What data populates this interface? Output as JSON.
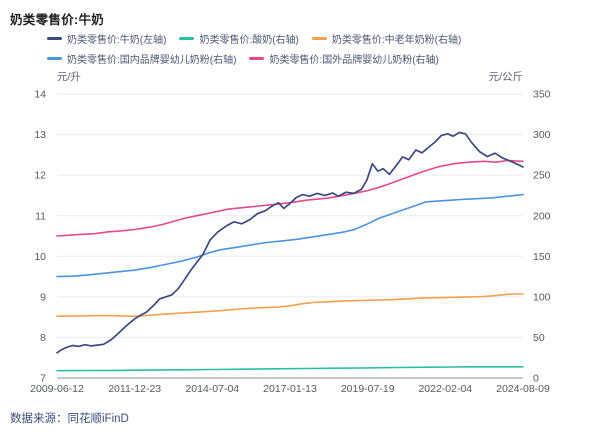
{
  "page": {
    "title": "奶类零售价:牛奶"
  },
  "footer": {
    "source": "数据来源：同花顺iFinD"
  },
  "chart_data": {
    "type": "line",
    "title": "奶类零售价:牛奶",
    "legend_position": "top",
    "grid": true,
    "x_axis": {
      "tick_labels": [
        "2009-06-12",
        "2011-12-23",
        "2014-07-04",
        "2017-01-13",
        "2019-07-19",
        "2022-02-04",
        "2024-08-09"
      ],
      "x_unit": "tick_index_0_to_6"
    },
    "left_axis": {
      "unit": "元/升",
      "min": 7,
      "max": 14,
      "ticks": [
        14,
        13,
        12,
        11,
        10,
        9,
        8,
        7
      ]
    },
    "right_axis": {
      "unit": "元/公斤",
      "min": 0,
      "max": 350,
      "ticks": [
        350,
        300,
        250,
        200,
        150,
        100,
        50,
        0
      ]
    },
    "series": [
      {
        "name": "奶类零售价:牛奶(左轴)",
        "axis": "left",
        "color": "#3b4a82",
        "points": [
          [
            0,
            7.62
          ],
          [
            0.06,
            7.7
          ],
          [
            0.13,
            7.76
          ],
          [
            0.2,
            7.8
          ],
          [
            0.28,
            7.78
          ],
          [
            0.36,
            7.82
          ],
          [
            0.44,
            7.79
          ],
          [
            0.52,
            7.81
          ],
          [
            0.6,
            7.83
          ],
          [
            0.7,
            7.95
          ],
          [
            0.8,
            8.12
          ],
          [
            0.9,
            8.3
          ],
          [
            1.0,
            8.46
          ],
          [
            1.07,
            8.54
          ],
          [
            1.15,
            8.62
          ],
          [
            1.25,
            8.8
          ],
          [
            1.32,
            8.95
          ],
          [
            1.4,
            9.0
          ],
          [
            1.48,
            9.05
          ],
          [
            1.56,
            9.2
          ],
          [
            1.64,
            9.42
          ],
          [
            1.72,
            9.65
          ],
          [
            1.8,
            9.85
          ],
          [
            1.88,
            10.05
          ],
          [
            1.97,
            10.4
          ],
          [
            2.07,
            10.6
          ],
          [
            2.18,
            10.75
          ],
          [
            2.28,
            10.85
          ],
          [
            2.38,
            10.8
          ],
          [
            2.48,
            10.9
          ],
          [
            2.58,
            11.05
          ],
          [
            2.68,
            11.12
          ],
          [
            2.78,
            11.25
          ],
          [
            2.85,
            11.32
          ],
          [
            2.92,
            11.18
          ],
          [
            3.0,
            11.3
          ],
          [
            3.08,
            11.45
          ],
          [
            3.16,
            11.52
          ],
          [
            3.25,
            11.48
          ],
          [
            3.35,
            11.55
          ],
          [
            3.45,
            11.5
          ],
          [
            3.55,
            11.56
          ],
          [
            3.62,
            11.48
          ],
          [
            3.72,
            11.58
          ],
          [
            3.82,
            11.55
          ],
          [
            3.92,
            11.65
          ],
          [
            3.99,
            11.88
          ],
          [
            4.06,
            12.28
          ],
          [
            4.13,
            12.1
          ],
          [
            4.2,
            12.16
          ],
          [
            4.28,
            12.02
          ],
          [
            4.37,
            12.24
          ],
          [
            4.45,
            12.45
          ],
          [
            4.53,
            12.38
          ],
          [
            4.62,
            12.62
          ],
          [
            4.7,
            12.55
          ],
          [
            4.78,
            12.68
          ],
          [
            4.87,
            12.82
          ],
          [
            4.95,
            12.98
          ],
          [
            5.03,
            13.02
          ],
          [
            5.1,
            12.96
          ],
          [
            5.18,
            13.05
          ],
          [
            5.26,
            13.02
          ],
          [
            5.34,
            12.8
          ],
          [
            5.44,
            12.58
          ],
          [
            5.54,
            12.46
          ],
          [
            5.64,
            12.54
          ],
          [
            5.74,
            12.42
          ],
          [
            5.87,
            12.32
          ],
          [
            6.0,
            12.2
          ]
        ]
      },
      {
        "name": "奶类零售价:酸奶(右轴)",
        "axis": "right",
        "color": "#2bbfa2",
        "points": [
          [
            0,
            9
          ],
          [
            0.4,
            9.2
          ],
          [
            0.8,
            9.4
          ],
          [
            1.2,
            9.7
          ],
          [
            1.6,
            10.1
          ],
          [
            2.0,
            10.5
          ],
          [
            2.4,
            10.9
          ],
          [
            2.8,
            11.3
          ],
          [
            3.2,
            11.7
          ],
          [
            3.6,
            12.1
          ],
          [
            4.0,
            12.5
          ],
          [
            4.4,
            12.9
          ],
          [
            4.8,
            13.3
          ],
          [
            5.1,
            13.6
          ],
          [
            5.4,
            13.8
          ],
          [
            5.7,
            13.8
          ],
          [
            6.0,
            13.8
          ]
        ]
      },
      {
        "name": "奶类零售价:中老年奶粉(右轴)",
        "axis": "right",
        "color": "#f5a04b",
        "points": [
          [
            0,
            76
          ],
          [
            0.3,
            76.5
          ],
          [
            0.6,
            77
          ],
          [
            0.85,
            76.5
          ],
          [
            1.0,
            76
          ],
          [
            1.15,
            77
          ],
          [
            1.35,
            78.5
          ],
          [
            1.6,
            80
          ],
          [
            1.85,
            81.5
          ],
          [
            2.1,
            83
          ],
          [
            2.35,
            85
          ],
          [
            2.6,
            86.5
          ],
          [
            2.85,
            87.5
          ],
          [
            3.0,
            89
          ],
          [
            3.15,
            91.5
          ],
          [
            3.3,
            93
          ],
          [
            3.5,
            94
          ],
          [
            3.7,
            95
          ],
          [
            3.9,
            95.5
          ],
          [
            4.1,
            96
          ],
          [
            4.3,
            96.5
          ],
          [
            4.5,
            97.5
          ],
          [
            4.7,
            98.5
          ],
          [
            4.9,
            99
          ],
          [
            5.1,
            99.5
          ],
          [
            5.3,
            100
          ],
          [
            5.5,
            100.5
          ],
          [
            5.7,
            102
          ],
          [
            5.85,
            103.5
          ],
          [
            6.0,
            103.5
          ]
        ]
      },
      {
        "name": "奶类零售价:国内品牌婴幼儿奶粉(右轴)",
        "axis": "right",
        "color": "#4a94e0",
        "points": [
          [
            0,
            125
          ],
          [
            0.2,
            125.5
          ],
          [
            0.4,
            127
          ],
          [
            0.6,
            129
          ],
          [
            0.8,
            131
          ],
          [
            1.0,
            133
          ],
          [
            1.2,
            136
          ],
          [
            1.4,
            140
          ],
          [
            1.6,
            144
          ],
          [
            1.8,
            149
          ],
          [
            1.95,
            154
          ],
          [
            2.1,
            158
          ],
          [
            2.3,
            161
          ],
          [
            2.5,
            164
          ],
          [
            2.7,
            167
          ],
          [
            2.9,
            169
          ],
          [
            3.1,
            171
          ],
          [
            3.3,
            174
          ],
          [
            3.5,
            177
          ],
          [
            3.7,
            180
          ],
          [
            3.83,
            183
          ],
          [
            4.0,
            190
          ],
          [
            4.15,
            197
          ],
          [
            4.3,
            202
          ],
          [
            4.45,
            207
          ],
          [
            4.6,
            212
          ],
          [
            4.75,
            217
          ],
          [
            4.9,
            218
          ],
          [
            5.05,
            219
          ],
          [
            5.2,
            220
          ],
          [
            5.4,
            221
          ],
          [
            5.6,
            222
          ],
          [
            5.8,
            224
          ],
          [
            6.0,
            226
          ]
        ]
      },
      {
        "name": "奶类零售价:国外品牌婴幼儿奶粉(右轴)",
        "axis": "right",
        "color": "#e5488e",
        "points": [
          [
            0,
            175
          ],
          [
            0.15,
            176
          ],
          [
            0.3,
            177
          ],
          [
            0.5,
            178
          ],
          [
            0.65,
            180
          ],
          [
            0.8,
            181
          ],
          [
            1.0,
            183
          ],
          [
            1.2,
            186
          ],
          [
            1.35,
            189
          ],
          [
            1.5,
            193
          ],
          [
            1.65,
            197
          ],
          [
            1.8,
            200
          ],
          [
            2.0,
            204
          ],
          [
            2.2,
            208
          ],
          [
            2.4,
            210
          ],
          [
            2.6,
            212
          ],
          [
            2.8,
            214
          ],
          [
            3.0,
            216
          ],
          [
            3.2,
            219
          ],
          [
            3.5,
            222
          ],
          [
            3.8,
            227
          ],
          [
            4.0,
            231
          ],
          [
            4.15,
            235
          ],
          [
            4.3,
            240
          ],
          [
            4.5,
            247
          ],
          [
            4.7,
            254
          ],
          [
            4.9,
            260
          ],
          [
            5.1,
            264
          ],
          [
            5.3,
            266
          ],
          [
            5.5,
            267
          ],
          [
            5.65,
            266
          ],
          [
            5.8,
            268
          ],
          [
            6.0,
            267
          ]
        ]
      }
    ],
    "colors": {
      "grid": "#eaeaf2",
      "axis_line": "#a6a6ae",
      "tick_label": "#57595e",
      "legend_text": "#4c5875"
    }
  }
}
